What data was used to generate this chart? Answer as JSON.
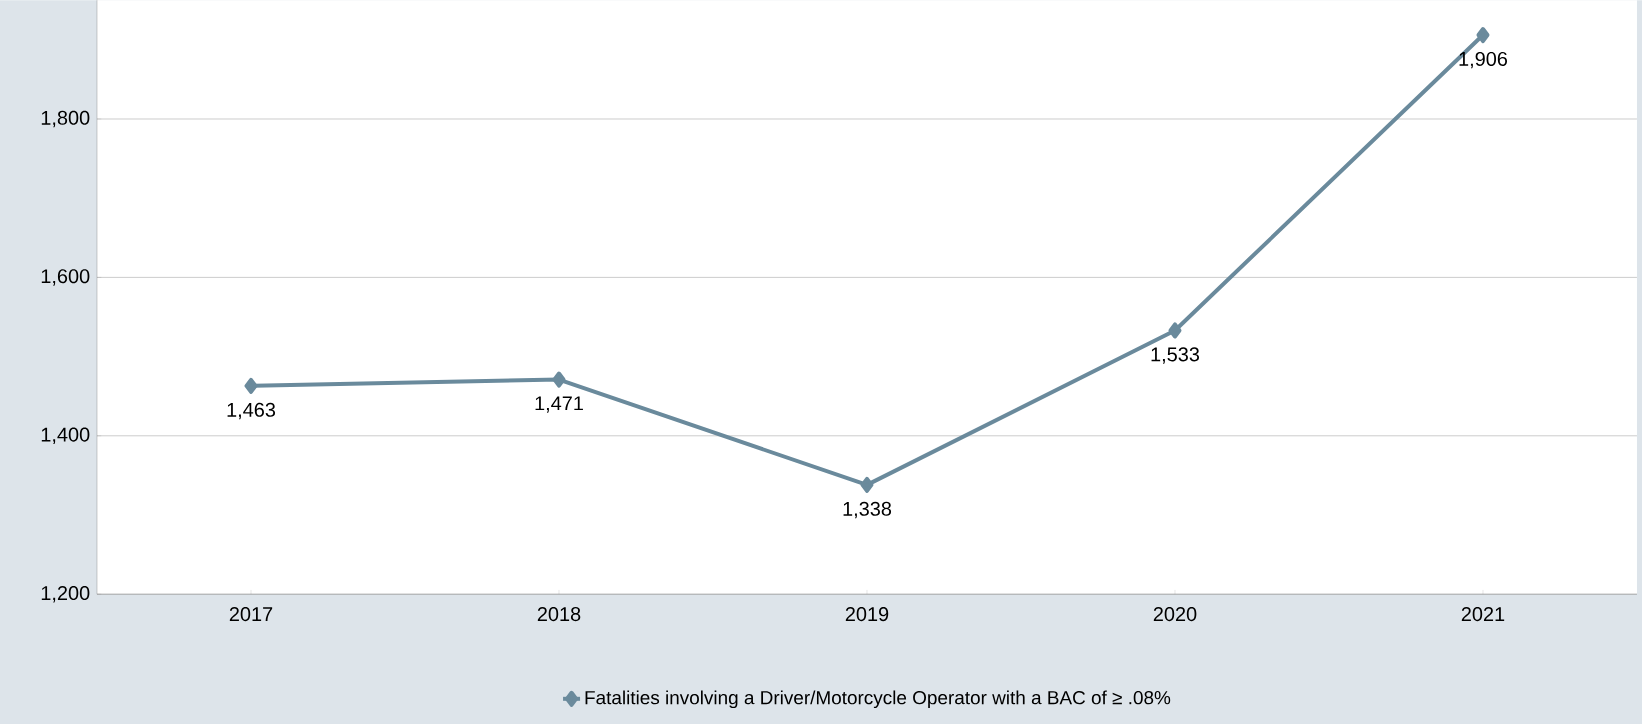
{
  "chart_data": {
    "type": "line",
    "categories": [
      "2017",
      "2018",
      "2019",
      "2020",
      "2021"
    ],
    "series": [
      {
        "name": "Fatalities involving a Driver/Motorcycle Operator with a BAC of ≥ .08%",
        "color": "#6a8a9c",
        "values": [
          1463,
          1471,
          1338,
          1533,
          1906
        ],
        "value_labels": [
          "1,463",
          "1,471",
          "1,338",
          "1,533",
          "1,906"
        ]
      }
    ],
    "ylim": [
      1200,
      1950
    ],
    "yticks": [
      {
        "value": 1200,
        "label": "1,200"
      },
      {
        "value": 1400,
        "label": "1,400"
      },
      {
        "value": 1600,
        "label": "1,600"
      },
      {
        "value": 1800,
        "label": "1,800"
      }
    ],
    "grid": "y",
    "legend": "bottom",
    "marker": "diamond",
    "line_style": "solid"
  }
}
